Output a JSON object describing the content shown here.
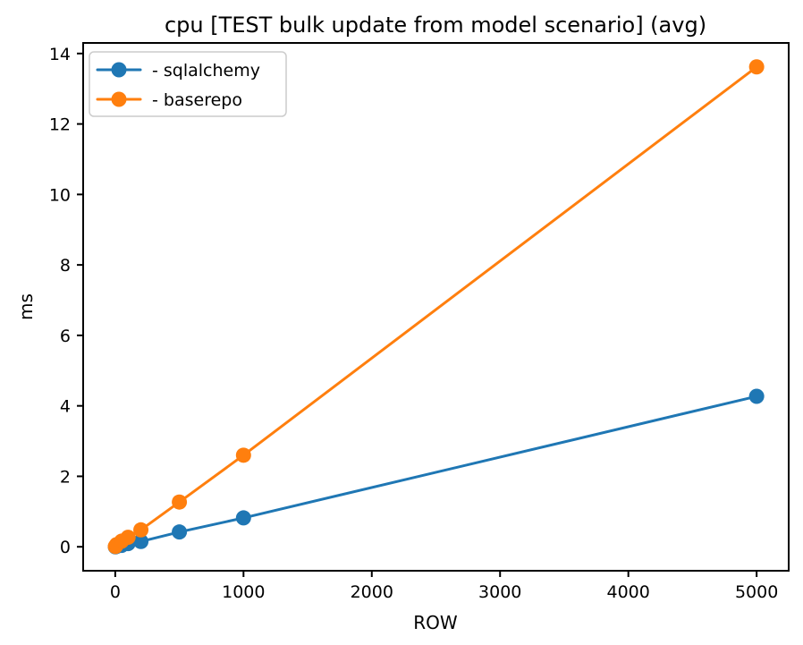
{
  "chart_data": {
    "type": "line",
    "title": "cpu [TEST bulk update from model scenario] (avg)",
    "xlabel": "ROW",
    "ylabel": "ms",
    "x": [
      1,
      10,
      50,
      100,
      200,
      500,
      1000,
      5000
    ],
    "series": [
      {
        "name": "- sqlalchemy",
        "color": "#1f77b4",
        "values": [
          0.0,
          0.01,
          0.04,
          0.09,
          0.15,
          0.42,
          0.82,
          4.27
        ]
      },
      {
        "name": "- baserepo",
        "color": "#ff7f0e",
        "values": [
          0.01,
          0.06,
          0.16,
          0.27,
          0.48,
          1.27,
          2.6,
          13.62
        ]
      }
    ],
    "xticks": [
      0,
      1000,
      2000,
      3000,
      4000,
      5000
    ],
    "yticks": [
      0,
      2,
      4,
      6,
      8,
      10,
      12,
      14
    ],
    "xlim": [
      -250,
      5250
    ],
    "ylim": [
      -0.68,
      14.3
    ],
    "grid": false,
    "legend_position": "upper-left",
    "axis_color": "#000000",
    "background_color": "#ffffff",
    "legend_border_color": "#cccccc"
  }
}
